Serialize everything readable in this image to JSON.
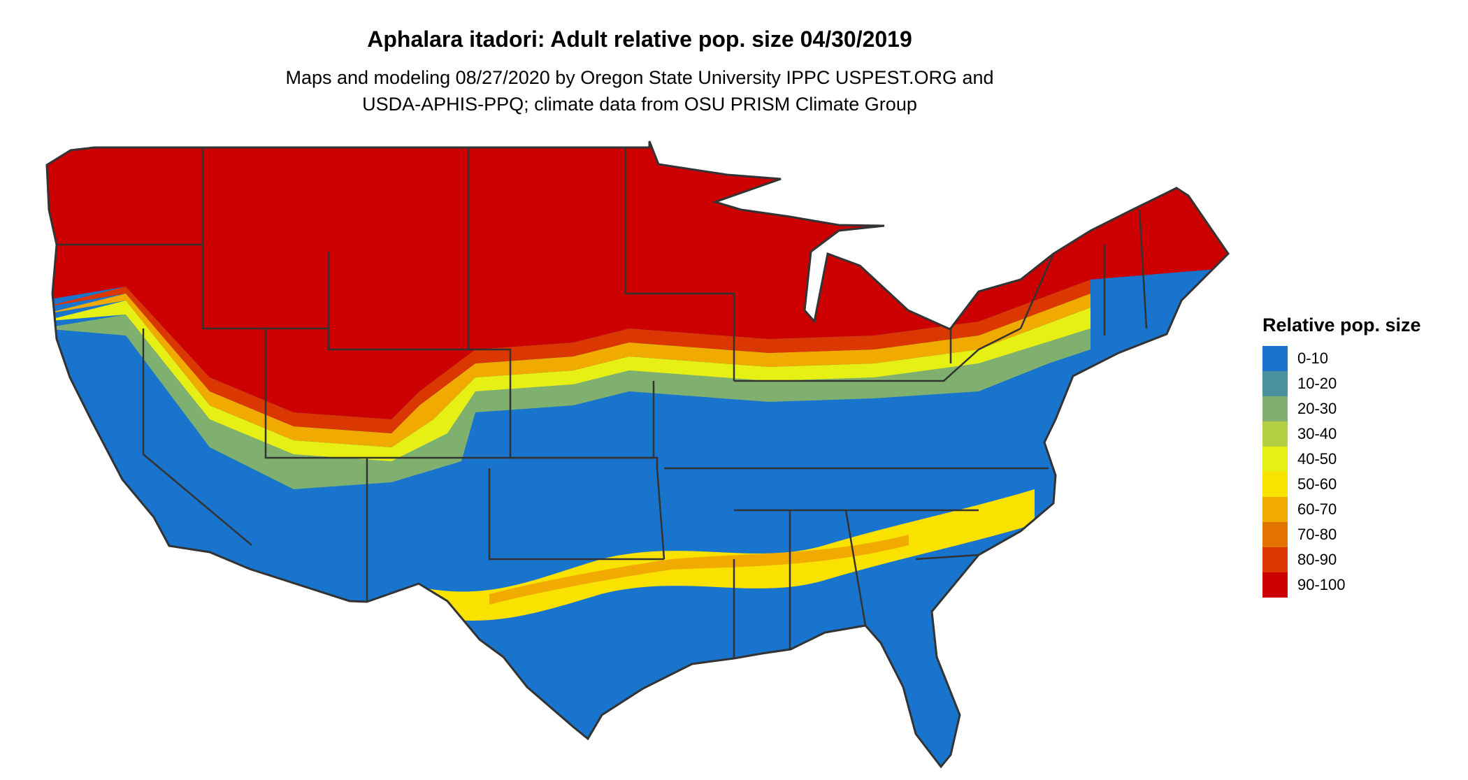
{
  "title": "Aphalara itadori: Adult relative pop. size 04/30/2019",
  "subtitle_lines": [
    "Maps and modeling 08/27/2020 by Oregon State University IPPC USPEST.ORG and",
    "USDA-APHIS-PPQ; climate data from OSU PRISM Climate Group"
  ],
  "legend": {
    "title": "Relative pop. size",
    "items": [
      {
        "label": "0-10",
        "color": "#1874CD"
      },
      {
        "label": "10-20",
        "color": "#4A919E"
      },
      {
        "label": "20-30",
        "color": "#7FB070"
      },
      {
        "label": "30-40",
        "color": "#B3D043"
      },
      {
        "label": "40-50",
        "color": "#E6F014"
      },
      {
        "label": "50-60",
        "color": "#F9E100"
      },
      {
        "label": "60-70",
        "color": "#F0AA00"
      },
      {
        "label": "70-80",
        "color": "#E27300"
      },
      {
        "label": "80-90",
        "color": "#DB3700"
      },
      {
        "label": "90-100",
        "color": "#CC0000"
      }
    ]
  },
  "map": {
    "region": "Contiguous United States",
    "border_color": "#333333"
  }
}
